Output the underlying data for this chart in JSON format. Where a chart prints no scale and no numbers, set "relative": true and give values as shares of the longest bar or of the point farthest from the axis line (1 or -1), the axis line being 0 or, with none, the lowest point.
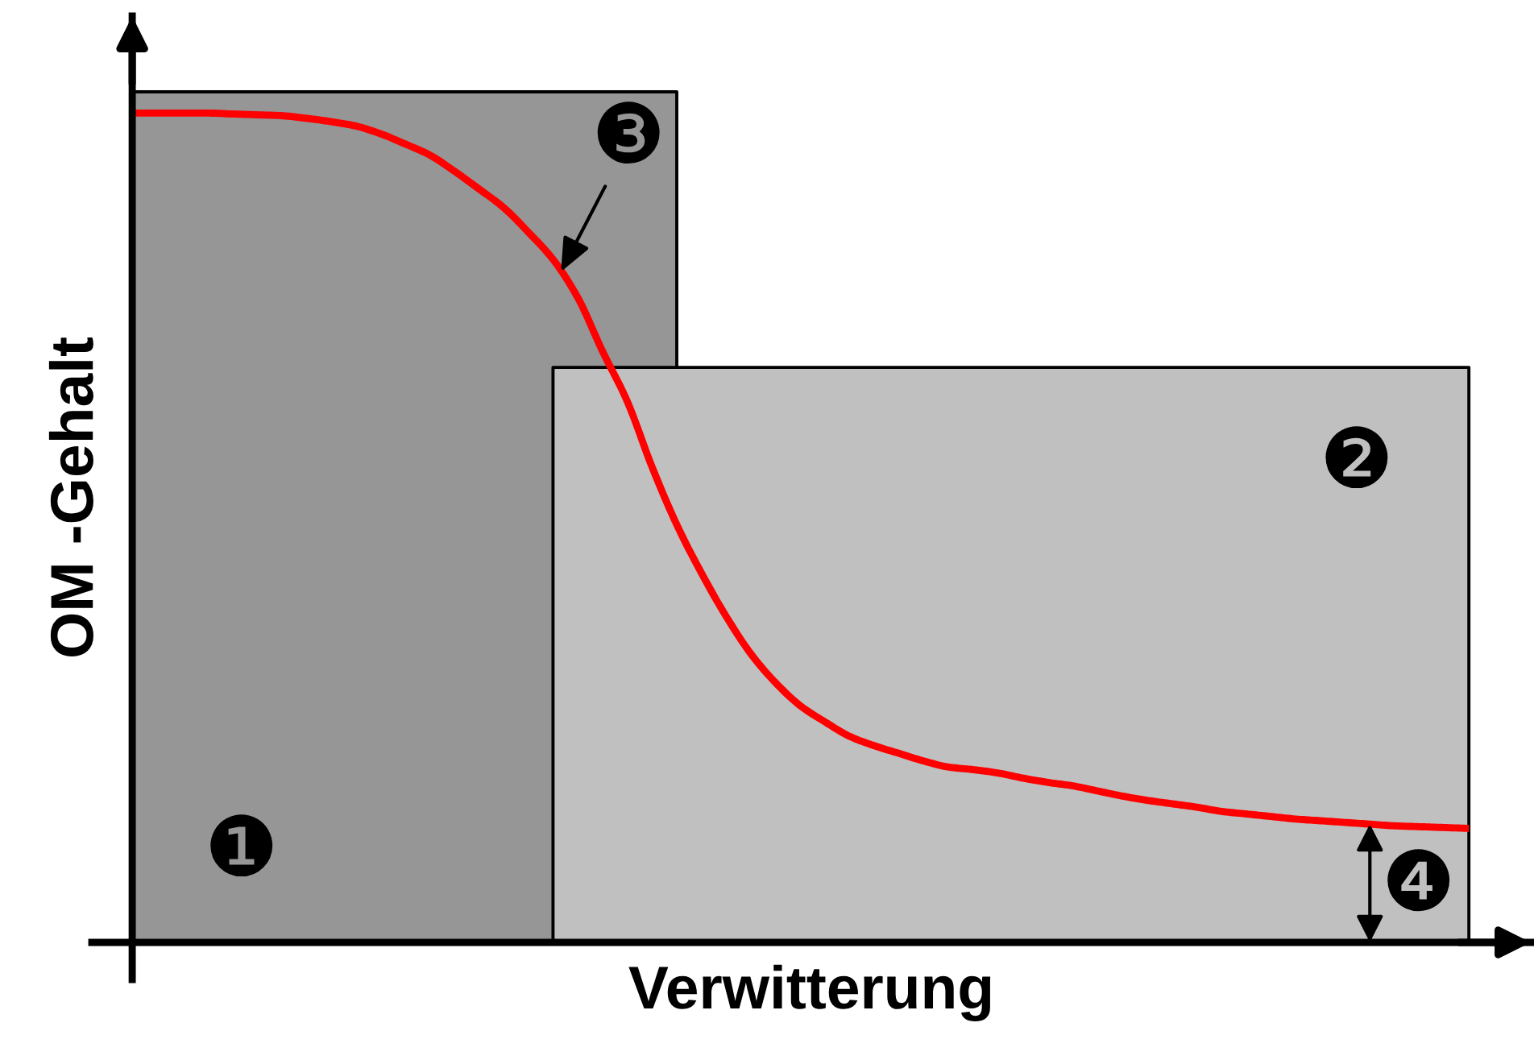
{
  "chart_data": {
    "type": "line",
    "relative": true,
    "xlabel": "Verwitterung",
    "ylabel": "OM -Gehalt",
    "tick_labels": false,
    "categories": [
      null,
      null,
      null,
      null,
      null,
      null,
      null,
      null,
      null,
      null,
      null,
      null,
      null,
      null,
      null,
      null,
      null,
      null,
      null,
      null,
      null,
      null,
      null,
      null,
      null,
      null,
      null,
      null,
      null,
      null,
      null,
      null,
      null,
      null,
      null,
      null,
      null,
      null,
      null,
      null,
      null,
      null,
      null,
      null,
      null,
      null,
      null,
      null,
      null,
      null,
      null,
      null,
      null,
      null,
      null
    ],
    "series": [
      {
        "type": "area",
        "color": "#969696",
        "values": [
          1,
          1,
          1,
          1,
          1,
          1,
          1,
          1,
          1,
          1,
          1,
          1,
          1,
          1,
          1,
          1,
          1,
          1,
          1,
          1,
          1,
          1,
          1,
          null,
          null,
          null,
          null,
          null,
          null,
          null,
          null,
          null,
          null,
          null,
          null,
          null,
          null,
          null,
          null,
          null,
          null,
          null,
          null,
          null,
          null,
          null,
          null,
          null,
          null,
          null,
          null,
          null,
          null,
          null,
          null
        ]
      },
      {
        "type": "area",
        "color": "#c0c0c0",
        "values": [
          null,
          null,
          null,
          null,
          null,
          null,
          null,
          null,
          null,
          null,
          null,
          null,
          null,
          null,
          null,
          null,
          null,
          0.676,
          0.676,
          0.676,
          0.676,
          0.676,
          0.676,
          0.676,
          0.676,
          0.676,
          0.676,
          0.676,
          0.676,
          0.676,
          0.676,
          0.676,
          0.676,
          0.676,
          0.676,
          0.676,
          0.676,
          0.676,
          0.676,
          0.676,
          0.676,
          0.676,
          0.676,
          0.676,
          0.676,
          0.676,
          0.676,
          0.676,
          0.676,
          0.676,
          0.676,
          0.676,
          0.676,
          0.676,
          0.676
        ]
      },
      {
        "color": "#ff0000",
        "values": [
          0.975,
          0.975,
          0.975,
          0.975,
          0.974,
          0.973,
          0.972,
          0.969,
          0.965,
          0.96,
          0.951,
          0.939,
          0.926,
          0.907,
          0.886,
          0.864,
          0.835,
          0.803,
          0.758,
          0.695,
          0.636,
          0.559,
          0.491,
          0.434,
          0.383,
          0.339,
          0.305,
          0.278,
          0.259,
          0.242,
          0.231,
          0.222,
          0.213,
          0.206,
          0.203,
          0.199,
          0.193,
          0.188,
          0.184,
          0.178,
          0.172,
          0.167,
          0.163,
          0.159,
          0.154,
          0.151,
          0.148,
          0.145,
          0.143,
          0.141,
          0.139,
          0.137,
          0.136,
          0.135,
          0.134
        ]
      }
    ],
    "annotations": [
      "❶",
      "❷",
      "❸",
      "❹"
    ]
  }
}
